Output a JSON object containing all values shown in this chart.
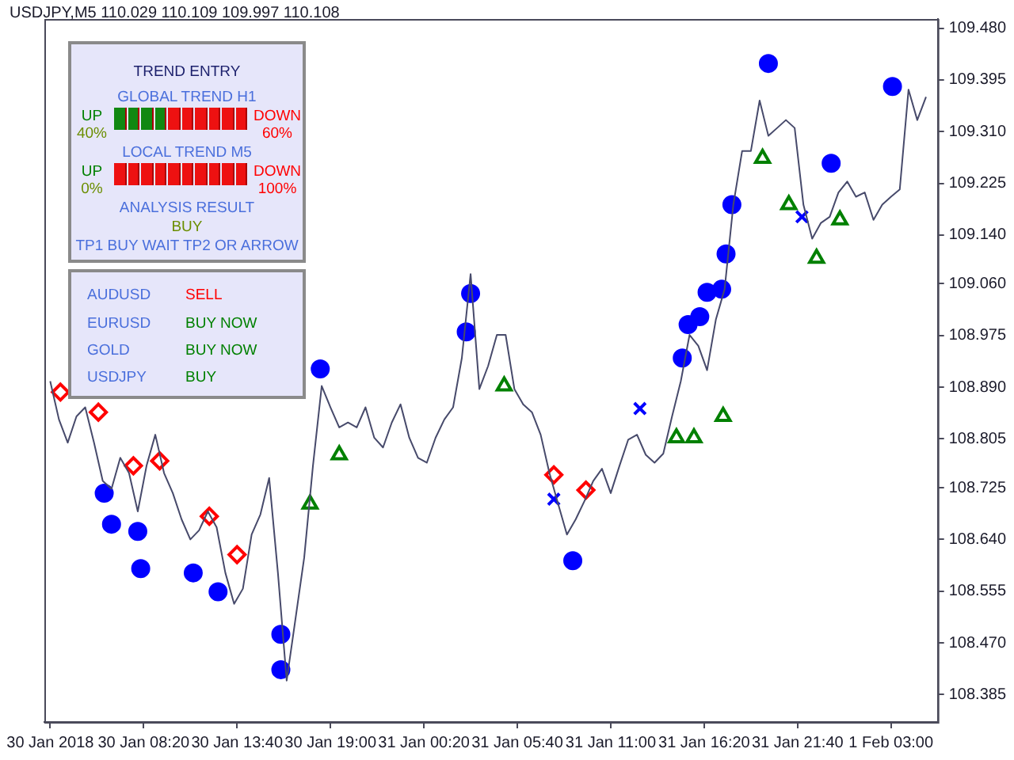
{
  "chart_data": {
    "type": "line",
    "title": "USDJPY,M5  110.029 110.109 109.997 110.108",
    "annotations": [
      "TREND ENTRY",
      "GLOBAL TREND H1",
      "UP",
      "40%",
      "DOWN",
      "60%",
      "LOCAL TREND M5",
      "UP",
      "0%",
      "DOWN",
      "100%",
      "ANALYSIS RESULT",
      "BUY",
      "TP1 BUY WAIT TP2 OR ARROW",
      "AUDUSD",
      "SELL",
      "EURUSD",
      "BUY NOW",
      "GOLD",
      "BUY NOW",
      "USDJPY",
      "BUY"
    ],
    "xlim": [
      "2018-01-30T02:40",
      "2018-02-01T05:40"
    ],
    "xticks": [
      {
        "value": "2018-01-30T03:00",
        "label": "30 Jan 2018"
      },
      {
        "value": "2018-01-30T08:20",
        "label": "30 Jan 08:20"
      },
      {
        "value": "2018-01-30T13:40",
        "label": "30 Jan 13:40"
      },
      {
        "value": "2018-01-30T19:00",
        "label": "30 Jan 19:00"
      },
      {
        "value": "2018-01-31T00:20",
        "label": "31 Jan 00:20"
      },
      {
        "value": "2018-01-31T05:40",
        "label": "31 Jan 05:40"
      },
      {
        "value": "2018-01-31T11:00",
        "label": "31 Jan 11:00"
      },
      {
        "value": "2018-01-31T16:20",
        "label": "31 Jan 16:20"
      },
      {
        "value": "2018-01-31T21:40",
        "label": "31 Jan 21:40"
      },
      {
        "value": "2018-02-01T03:00",
        "label": "1 Feb 03:00"
      }
    ],
    "ylim": [
      108.34,
      109.495
    ],
    "yticks": [
      {
        "value": 108.385,
        "label": "108.385"
      },
      {
        "value": 108.47,
        "label": "108.470"
      },
      {
        "value": 108.555,
        "label": "108.555"
      },
      {
        "value": 108.64,
        "label": "108.640"
      },
      {
        "value": 108.725,
        "label": "108.725"
      },
      {
        "value": 108.805,
        "label": "108.805"
      },
      {
        "value": 108.89,
        "label": "108.890"
      },
      {
        "value": 108.975,
        "label": "108.975"
      },
      {
        "value": 109.06,
        "label": "109.060"
      },
      {
        "value": 109.14,
        "label": "109.140"
      },
      {
        "value": 109.225,
        "label": "109.225"
      },
      {
        "value": 109.31,
        "label": "109.310"
      },
      {
        "value": 109.395,
        "label": "109.395"
      },
      {
        "value": 109.48,
        "label": "109.480"
      }
    ],
    "grid": false,
    "legend": false,
    "series": [
      {
        "type": "line",
        "color": "#474a6b",
        "marker": "none",
        "x": [
          "2018-01-30T03:00",
          "2018-01-30T03:30",
          "2018-01-30T04:00",
          "2018-01-30T04:30",
          "2018-01-30T05:00",
          "2018-01-30T05:30",
          "2018-01-30T06:00",
          "2018-01-30T06:30",
          "2018-01-30T07:00",
          "2018-01-30T07:30",
          "2018-01-30T08:00",
          "2018-01-30T08:30",
          "2018-01-30T09:00",
          "2018-01-30T09:30",
          "2018-01-30T10:00",
          "2018-01-30T10:30",
          "2018-01-30T11:00",
          "2018-01-30T11:30",
          "2018-01-30T12:00",
          "2018-01-30T12:30",
          "2018-01-30T13:00",
          "2018-01-30T13:30",
          "2018-01-30T14:00",
          "2018-01-30T14:30",
          "2018-01-30T15:00",
          "2018-01-30T15:30",
          "2018-01-30T16:00",
          "2018-01-30T16:30",
          "2018-01-30T17:00",
          "2018-01-30T17:30",
          "2018-01-30T18:00",
          "2018-01-30T18:30",
          "2018-01-30T19:00",
          "2018-01-30T19:30",
          "2018-01-30T20:00",
          "2018-01-30T20:30",
          "2018-01-30T21:00",
          "2018-01-30T21:30",
          "2018-01-30T22:00",
          "2018-01-30T22:30",
          "2018-01-30T23:00",
          "2018-01-30T23:30",
          "2018-01-31T00:00",
          "2018-01-31T00:30",
          "2018-01-31T01:00",
          "2018-01-31T01:30",
          "2018-01-31T02:00",
          "2018-01-31T02:30",
          "2018-01-31T03:00",
          "2018-01-31T03:30",
          "2018-01-31T04:00",
          "2018-01-31T04:30",
          "2018-01-31T05:00",
          "2018-01-31T05:30",
          "2018-01-31T06:00",
          "2018-01-31T06:30",
          "2018-01-31T07:00",
          "2018-01-31T07:30",
          "2018-01-31T08:00",
          "2018-01-31T08:30",
          "2018-01-31T09:00",
          "2018-01-31T09:30",
          "2018-01-31T10:00",
          "2018-01-31T10:30",
          "2018-01-31T11:00",
          "2018-01-31T11:30",
          "2018-01-31T12:00",
          "2018-01-31T12:30",
          "2018-01-31T13:00",
          "2018-01-31T13:30",
          "2018-01-31T14:00",
          "2018-01-31T14:30",
          "2018-01-31T15:00",
          "2018-01-31T15:30",
          "2018-01-31T16:00",
          "2018-01-31T16:30",
          "2018-01-31T17:00",
          "2018-01-31T17:30",
          "2018-01-31T18:00",
          "2018-01-31T18:30",
          "2018-01-31T19:00",
          "2018-01-31T19:30",
          "2018-01-31T20:00",
          "2018-01-31T20:30",
          "2018-01-31T21:00",
          "2018-01-31T21:30",
          "2018-01-31T22:00",
          "2018-01-31T22:30",
          "2018-01-31T23:00",
          "2018-01-31T23:30",
          "2018-02-01T00:00",
          "2018-02-01T00:30",
          "2018-02-01T01:00",
          "2018-02-01T01:30",
          "2018-02-01T02:00",
          "2018-02-01T02:30",
          "2018-02-01T03:00",
          "2018-02-01T03:30",
          "2018-02-01T04:00",
          "2018-02-01T04:30",
          "2018-02-01T05:00"
        ],
        "values": [
          108.9,
          108.837,
          108.799,
          108.842,
          108.857,
          108.799,
          108.736,
          108.723,
          108.774,
          108.749,
          108.686,
          108.761,
          108.812,
          108.749,
          108.716,
          108.673,
          108.64,
          108.655,
          108.686,
          108.66,
          108.585,
          108.534,
          108.559,
          108.648,
          108.681,
          108.741,
          108.585,
          108.408,
          108.509,
          108.61,
          108.761,
          108.892,
          108.857,
          108.824,
          108.832,
          108.824,
          108.857,
          108.807,
          108.791,
          108.832,
          108.862,
          108.807,
          108.774,
          108.766,
          108.807,
          108.837,
          108.857,
          108.938,
          109.076,
          108.887,
          108.925,
          108.976,
          108.976,
          108.887,
          108.862,
          108.849,
          108.812,
          108.749,
          108.698,
          108.648,
          108.673,
          108.703,
          108.736,
          108.756,
          108.716,
          108.761,
          108.804,
          108.812,
          108.779,
          108.766,
          108.781,
          108.842,
          108.9,
          108.976,
          108.958,
          108.918,
          109.001,
          109.051,
          109.19,
          109.278,
          109.278,
          109.361,
          109.303,
          109.316,
          109.329,
          109.316,
          109.19,
          109.134,
          109.16,
          109.17,
          109.21,
          109.228,
          109.203,
          109.21,
          109.165,
          109.19,
          109.203,
          109.215,
          109.379,
          109.329,
          109.367
        ]
      },
      {
        "type": "scatter",
        "color": "#0000ff",
        "marker": "circle",
        "x": [
          "2018-01-30T06:05",
          "2018-01-30T06:30",
          "2018-01-30T08:00",
          "2018-01-30T08:10",
          "2018-01-30T11:10",
          "2018-01-30T12:35",
          "2018-01-30T16:10",
          "2018-01-30T16:10",
          "2018-01-30T18:25",
          "2018-01-31T02:45",
          "2018-01-31T03:00",
          "2018-01-31T08:50",
          "2018-01-31T15:05",
          "2018-01-31T15:25",
          "2018-01-31T16:05",
          "2018-01-31T16:30",
          "2018-01-31T17:20",
          "2018-01-31T17:35",
          "2018-01-31T17:55",
          "2018-01-31T20:00",
          "2018-01-31T23:35",
          "2018-02-01T03:05"
        ],
        "values": [
          108.716,
          108.665,
          108.653,
          108.592,
          108.585,
          108.554,
          108.484,
          108.426,
          108.92,
          108.981,
          109.044,
          108.605,
          108.938,
          108.993,
          109.006,
          109.046,
          109.051,
          109.109,
          109.19,
          109.422,
          109.258,
          109.384
        ]
      },
      {
        "type": "scatter",
        "color": "#0000ff",
        "marker": "cross",
        "x": [
          "2018-01-31T07:45",
          "2018-01-31T12:40",
          "2018-01-31T21:55"
        ],
        "values": [
          108.706,
          108.855,
          109.17
        ]
      },
      {
        "type": "scatter",
        "color": "#008000",
        "marker": "triangle",
        "x": [
          "2018-01-30T17:50",
          "2018-01-30T19:30",
          "2018-01-31T04:55",
          "2018-01-31T14:45",
          "2018-01-31T15:45",
          "2018-01-31T17:25",
          "2018-01-31T19:40",
          "2018-01-31T21:10",
          "2018-01-31T22:45",
          "2018-02-01T00:05"
        ],
        "values": [
          108.698,
          108.779,
          108.892,
          108.807,
          108.807,
          108.842,
          109.266,
          109.19,
          109.102,
          109.165
        ]
      },
      {
        "type": "scatter",
        "color": "#ff0000",
        "marker": "diamond",
        "x": [
          "2018-01-30T03:35",
          "2018-01-30T05:45",
          "2018-01-30T07:45",
          "2018-01-30T09:15",
          "2018-01-30T12:05",
          "2018-01-30T13:40",
          "2018-01-31T07:45",
          "2018-01-31T09:35"
        ],
        "values": [
          108.882,
          108.849,
          108.761,
          108.769,
          108.678,
          108.615,
          108.746,
          108.721
        ]
      }
    ]
  }
}
